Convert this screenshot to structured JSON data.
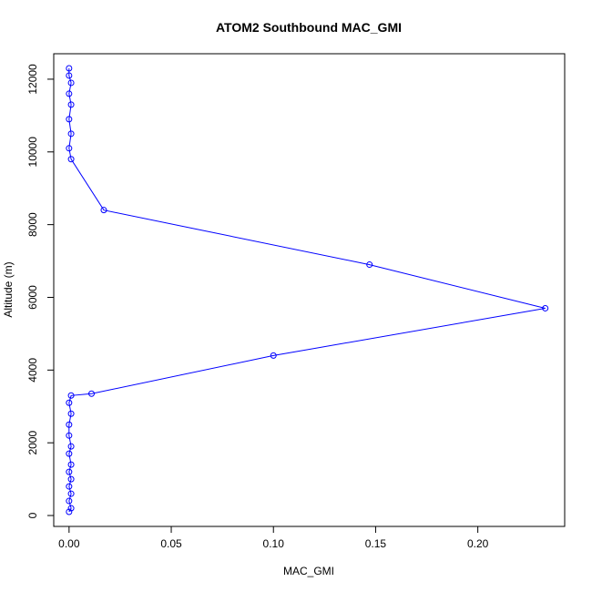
{
  "chart_data": {
    "type": "line",
    "title": "ATOM2 Southbound MAC_GMI",
    "xlabel": "MAC_GMI",
    "ylabel": "Altitude (m)",
    "xlim": [
      -0.0075,
      0.2425
    ],
    "ylim": [
      -300,
      12700
    ],
    "x_ticks": [
      0.0,
      0.05,
      0.1,
      0.15,
      0.2
    ],
    "x_tick_labels": [
      "0.00",
      "0.05",
      "0.10",
      "0.15",
      "0.20"
    ],
    "y_ticks": [
      0,
      2000,
      4000,
      6000,
      8000,
      10000,
      12000
    ],
    "y_tick_labels": [
      "0",
      "2000",
      "4000",
      "6000",
      "8000",
      "10000",
      "12000"
    ],
    "grid": false,
    "legend": "none",
    "series_color": "#0000ff",
    "series": [
      {
        "points": [
          {
            "x": 0.0,
            "y": 100
          },
          {
            "x": 0.001,
            "y": 200
          },
          {
            "x": 0.0,
            "y": 400
          },
          {
            "x": 0.001,
            "y": 600
          },
          {
            "x": 0.0,
            "y": 800
          },
          {
            "x": 0.001,
            "y": 1000
          },
          {
            "x": 0.0,
            "y": 1200
          },
          {
            "x": 0.001,
            "y": 1400
          },
          {
            "x": 0.0,
            "y": 1700
          },
          {
            "x": 0.001,
            "y": 1900
          },
          {
            "x": 0.0,
            "y": 2200
          },
          {
            "x": 0.0,
            "y": 2500
          },
          {
            "x": 0.001,
            "y": 2800
          },
          {
            "x": 0.0,
            "y": 3100
          },
          {
            "x": 0.001,
            "y": 3300
          },
          {
            "x": 0.011,
            "y": 3350
          },
          {
            "x": 0.1,
            "y": 4400
          },
          {
            "x": 0.233,
            "y": 5700
          },
          {
            "x": 0.147,
            "y": 6900
          },
          {
            "x": 0.017,
            "y": 8400
          },
          {
            "x": 0.001,
            "y": 9800
          },
          {
            "x": 0.0,
            "y": 10100
          },
          {
            "x": 0.001,
            "y": 10500
          },
          {
            "x": 0.0,
            "y": 10900
          },
          {
            "x": 0.001,
            "y": 11300
          },
          {
            "x": 0.0,
            "y": 11600
          },
          {
            "x": 0.001,
            "y": 11900
          },
          {
            "x": 0.0,
            "y": 12100
          },
          {
            "x": 0.0,
            "y": 12300
          }
        ]
      }
    ]
  }
}
